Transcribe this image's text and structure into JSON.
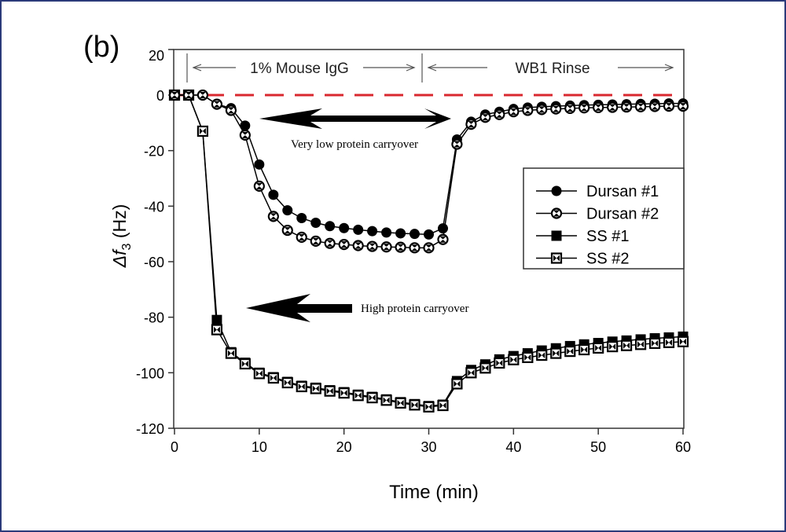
{
  "panel_label": "(b)",
  "chart_data": {
    "type": "line",
    "xlabel": "Time (min)",
    "ylabel_symbol": "Δf",
    "ylabel_subscript": "3",
    "ylabel_unit": "(Hz)",
    "xlim": [
      0,
      60
    ],
    "ylim": [
      -120,
      20
    ],
    "xticks": [
      "0",
      "10",
      "20",
      "30",
      "40",
      "50",
      "60"
    ],
    "yticks": [
      "20",
      "0",
      "-20",
      "-40",
      "-60",
      "-80",
      "-100",
      "-120"
    ],
    "grid": false,
    "legend_position": "right",
    "reference_line": {
      "y": 0,
      "color": "#d9282f",
      "style": "dashed"
    },
    "phases": [
      {
        "label": "1% Mouse IgG",
        "start": 1.5,
        "end": 29.2
      },
      {
        "label": "WB1 Rinse",
        "start": 29.2,
        "end": 60
      }
    ],
    "annotations": [
      {
        "text": "Very low protein carryover",
        "arrow": "double"
      },
      {
        "text": "High protein carryover",
        "arrow": "left"
      }
    ],
    "x": [
      0,
      1.67,
      3.33,
      5,
      6.67,
      8.33,
      10,
      11.67,
      13.33,
      15,
      16.67,
      18.33,
      20,
      21.67,
      23.33,
      25,
      26.67,
      28.33,
      30,
      31.67,
      33.33,
      35,
      36.67,
      38.33,
      40,
      41.67,
      43.33,
      45,
      46.67,
      48.33,
      50,
      51.67,
      53.33,
      55,
      56.67,
      58.33,
      60
    ],
    "series": [
      {
        "name": "Dursan #1",
        "marker": "filled-circle",
        "values": [
          0,
          0,
          0,
          -3.3,
          -4.7,
          -11,
          -25,
          -35.9,
          -41.5,
          -44.3,
          -46,
          -47.2,
          -47.9,
          -48.5,
          -49,
          -49.5,
          -49.8,
          -50,
          -50.2,
          -48,
          -16,
          -9.6,
          -7,
          -6,
          -5,
          -4.5,
          -4.2,
          -4,
          -3.8,
          -3.6,
          -3.5,
          -3.4,
          -3.3,
          -3.2,
          -3.1,
          -3,
          -3
        ]
      },
      {
        "name": "Dursan #2",
        "marker": "open-circle",
        "values": [
          0,
          0,
          0,
          -3.3,
          -5.5,
          -14.4,
          -32.8,
          -43.7,
          -48.7,
          -51.2,
          -52.6,
          -53.4,
          -53.8,
          -54.2,
          -54.5,
          -54.7,
          -54.8,
          -55,
          -55,
          -52,
          -17.7,
          -10.5,
          -8,
          -7,
          -6,
          -5.5,
          -5.2,
          -5,
          -4.8,
          -4.6,
          -4.5,
          -4.4,
          -4.3,
          -4.2,
          -4.1,
          -4,
          -4
        ]
      },
      {
        "name": "SS #1",
        "marker": "filled-square",
        "values": [
          0,
          0,
          -13,
          -81,
          -92.6,
          -96.4,
          -100,
          -101.6,
          -103.3,
          -104.7,
          -105.4,
          -106.3,
          -107,
          -107.9,
          -108.7,
          -109.6,
          -110.6,
          -111.3,
          -112,
          -111.5,
          -103,
          -99,
          -97,
          -95.2,
          -94,
          -93,
          -92,
          -91.2,
          -90.4,
          -89.8,
          -89.3,
          -88.8,
          -88.4,
          -88,
          -87.6,
          -87.3,
          -87
        ]
      },
      {
        "name": "SS #2",
        "marker": "open-square",
        "values": [
          0,
          0,
          -13,
          -84.5,
          -93,
          -96.8,
          -100.3,
          -101.9,
          -103.6,
          -105,
          -105.7,
          -106.6,
          -107.3,
          -108.2,
          -109,
          -109.9,
          -110.9,
          -111.6,
          -112.3,
          -111.8,
          -104,
          -100,
          -98.3,
          -96.5,
          -95.3,
          -94.5,
          -93.7,
          -93,
          -92.3,
          -91.7,
          -91.1,
          -90.6,
          -90.2,
          -89.8,
          -89.4,
          -89.1,
          -88.8
        ]
      }
    ]
  }
}
